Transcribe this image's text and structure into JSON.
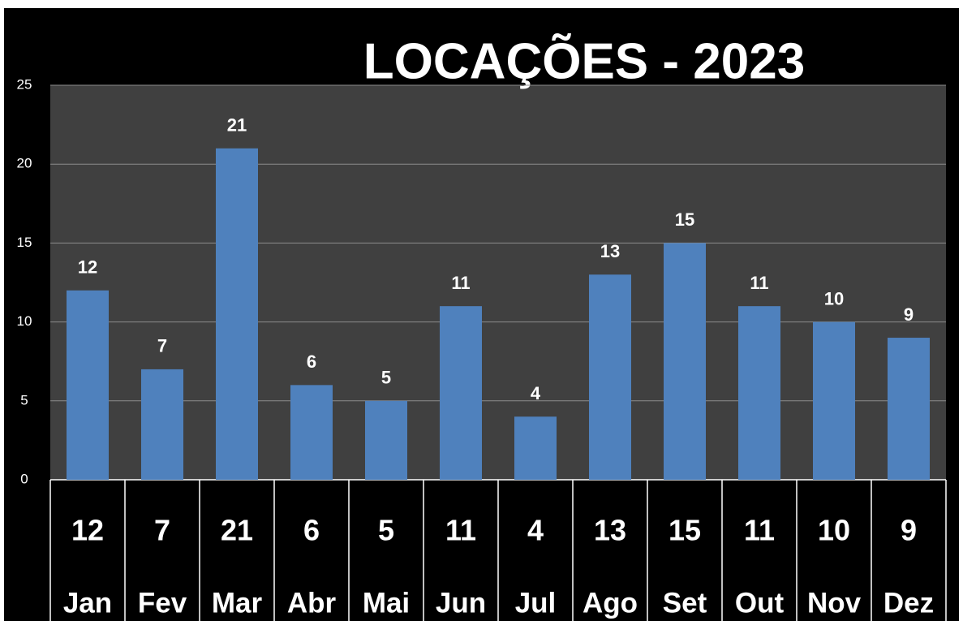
{
  "chart_data": {
    "type": "bar",
    "title": "LOCAÇÕES - 2023",
    "categories": [
      "Jan",
      "Fev",
      "Mar",
      "Abr",
      "Mai",
      "Jun",
      "Jul",
      "Ago",
      "Set",
      "Out",
      "Nov",
      "Dez"
    ],
    "values": [
      12,
      7,
      21,
      6,
      5,
      11,
      4,
      13,
      15,
      11,
      10,
      9
    ],
    "color": "#4f81bd",
    "ylim": [
      0,
      25
    ],
    "yticks": [
      0,
      5,
      10,
      15,
      20,
      25
    ],
    "grid": true
  }
}
